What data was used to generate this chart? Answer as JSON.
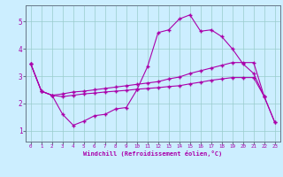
{
  "xlabel": "Windchill (Refroidissement éolien,°C)",
  "bg_color": "#cceeff",
  "line_color": "#aa00aa",
  "grid_color": "#99cccc",
  "axis_color": "#667788",
  "xlim": [
    -0.5,
    23.5
  ],
  "ylim": [
    0.6,
    5.6
  ],
  "yticks": [
    1,
    2,
    3,
    4,
    5
  ],
  "xticks": [
    0,
    1,
    2,
    3,
    4,
    5,
    6,
    7,
    8,
    9,
    10,
    11,
    12,
    13,
    14,
    15,
    16,
    17,
    18,
    19,
    20,
    21,
    22,
    23
  ],
  "line1_x": [
    0,
    1,
    2,
    3,
    4,
    5,
    6,
    7,
    8,
    9,
    10,
    11,
    12,
    13,
    14,
    15,
    16,
    17,
    18,
    19,
    20,
    21,
    22
  ],
  "line1_y": [
    3.45,
    2.45,
    2.3,
    1.6,
    1.2,
    1.35,
    1.55,
    1.6,
    1.8,
    1.85,
    2.5,
    3.35,
    4.6,
    4.7,
    5.1,
    5.25,
    4.65,
    4.7,
    4.45,
    4.0,
    3.45,
    3.1,
    2.25
  ],
  "line2_x": [
    0,
    1,
    2,
    3,
    4,
    5,
    6,
    7,
    8,
    9,
    10,
    11,
    12,
    13,
    14,
    15,
    16,
    17,
    18,
    19,
    20,
    21,
    22,
    23
  ],
  "line2_y": [
    3.45,
    2.45,
    2.3,
    2.25,
    2.3,
    2.35,
    2.38,
    2.42,
    2.45,
    2.48,
    2.52,
    2.55,
    2.58,
    2.62,
    2.65,
    2.72,
    2.78,
    2.85,
    2.9,
    2.95,
    2.95,
    2.95,
    2.25,
    1.3
  ],
  "line3_x": [
    0,
    1,
    2,
    3,
    4,
    5,
    6,
    7,
    8,
    9,
    10,
    11,
    12,
    13,
    14,
    15,
    16,
    17,
    18,
    19,
    20,
    21,
    22,
    23
  ],
  "line3_y": [
    3.45,
    2.45,
    2.3,
    2.35,
    2.42,
    2.45,
    2.5,
    2.55,
    2.6,
    2.65,
    2.7,
    2.75,
    2.8,
    2.9,
    2.97,
    3.1,
    3.2,
    3.3,
    3.4,
    3.5,
    3.5,
    3.5,
    2.25,
    1.3
  ]
}
